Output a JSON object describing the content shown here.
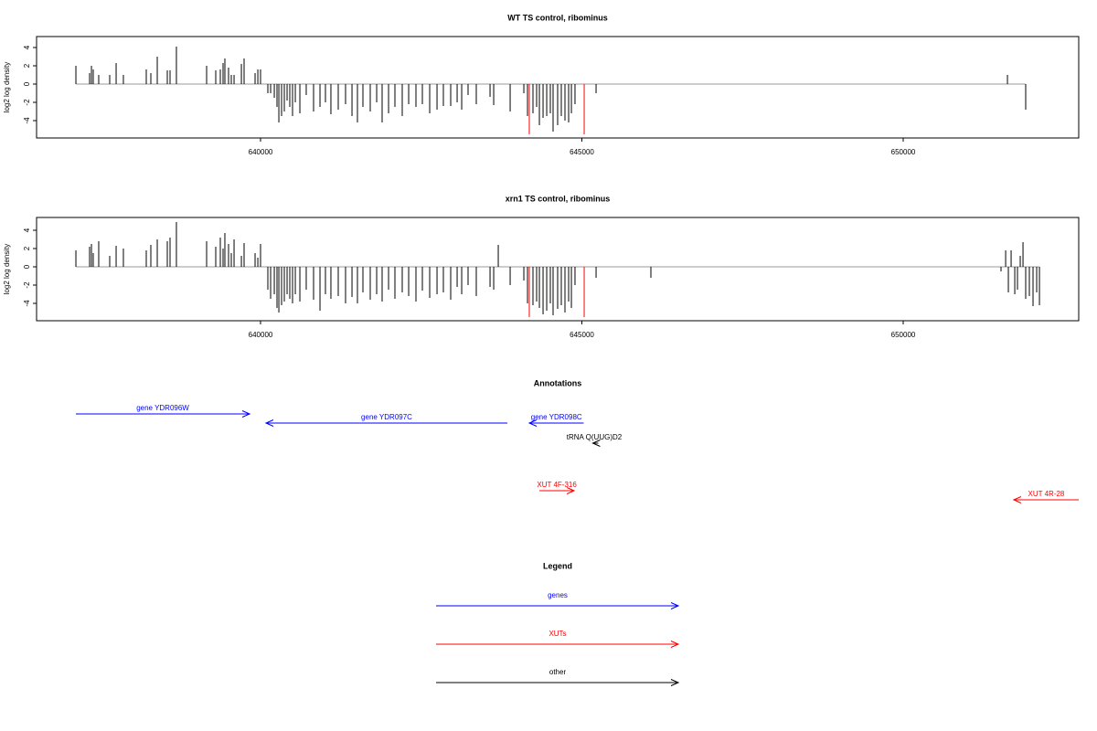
{
  "chart_data": [
    {
      "type": "spikes",
      "title": "WT TS control, ribominus",
      "y_label": "log2 log density",
      "xlim": [
        636515,
        652731
      ],
      "xticks": [
        640000,
        645000,
        650000
      ],
      "ylim": [
        -5.9,
        5.2
      ],
      "yticks": [
        4,
        2,
        0,
        -2,
        -4
      ],
      "series": [
        {
          "color": "#000000",
          "x": [
            637127,
            637340,
            637369,
            637397,
            637482,
            637653,
            637753,
            637866,
            638222,
            638293,
            638393,
            638549,
            638592,
            638691,
            639161,
            639303,
            639374,
            639417,
            639445,
            639502,
            639545,
            639588,
            639702,
            639744,
            639915,
            639958,
            640000,
            640114,
            640157,
            640214,
            640256,
            640285,
            640327,
            640370,
            640413,
            640455,
            640498,
            640541,
            640612,
            640711,
            640825,
            640925,
            641010,
            641095,
            641209,
            641323,
            641423,
            641508,
            641593,
            641707,
            641807,
            641892,
            641992,
            642091,
            642205,
            642305,
            642418,
            642518,
            642632,
            642746,
            642845,
            642959,
            643059,
            643130,
            643229,
            643357,
            643571,
            643628,
            643884,
            644097,
            644154,
            644239,
            644296,
            644339,
            644396,
            644453,
            644509,
            644552,
            644623,
            644680,
            644737,
            644794,
            644837,
            644893,
            645221,
            651622,
            651906
          ],
          "values": [
            2,
            1.2,
            2,
            1.6,
            1,
            1,
            2.3,
            1,
            1.6,
            1.2,
            3,
            1.5,
            1.5,
            4.1,
            2,
            1.5,
            1.6,
            2.3,
            2.8,
            1.8,
            1,
            1,
            2.2,
            2.8,
            1.2,
            1.6,
            1.6,
            -1,
            -1,
            -1.5,
            -2.5,
            -4.2,
            -3.5,
            -3,
            -1.8,
            -2.5,
            -3.5,
            -2,
            -3.2,
            -1.2,
            -3,
            -2.5,
            -2,
            -3.3,
            -2.8,
            -2.2,
            -3.5,
            -4.2,
            -2.5,
            -3,
            -2,
            -4.2,
            -3.2,
            -2.5,
            -3.5,
            -2.2,
            -2.5,
            -2.2,
            -3.2,
            -2.8,
            -2.4,
            -2.4,
            -2,
            -2.8,
            -1.2,
            -2.2,
            -1.4,
            -2.3,
            -3,
            -1,
            -3.5,
            -3.2,
            -2.5,
            -4.5,
            -3.7,
            -3.5,
            -3.2,
            -5.2,
            -4.5,
            -3.5,
            -4,
            -4.2,
            -3.2,
            -2.2,
            -1,
            1,
            -2.8
          ]
        },
        {
          "color": "#ff0000",
          "x": [
            644182,
            645036
          ],
          "values": [
            -5.5,
            -5.5
          ]
        }
      ]
    },
    {
      "type": "spikes",
      "title": "xrn1 TS control, ribominus",
      "y_label": "log2 log density",
      "xlim": [
        636515,
        652731
      ],
      "xticks": [
        640000,
        645000,
        650000
      ],
      "ylim": [
        -5.9,
        5.4
      ],
      "yticks": [
        4,
        2,
        0,
        -2,
        -4
      ],
      "series": [
        {
          "color": "#000000",
          "x": [
            637127,
            637340,
            637369,
            637397,
            637482,
            637653,
            637753,
            637866,
            638222,
            638293,
            638393,
            638549,
            638592,
            638691,
            639161,
            639303,
            639374,
            639417,
            639445,
            639502,
            639545,
            639588,
            639702,
            639744,
            639915,
            639958,
            640000,
            640114,
            640157,
            640214,
            640256,
            640285,
            640327,
            640370,
            640413,
            640455,
            640498,
            640541,
            640612,
            640711,
            640825,
            640925,
            641010,
            641095,
            641209,
            641323,
            641423,
            641508,
            641593,
            641707,
            641807,
            641892,
            641992,
            642091,
            642205,
            642305,
            642418,
            642518,
            642632,
            642746,
            642845,
            642959,
            643059,
            643130,
            643229,
            643357,
            643571,
            643628,
            643884,
            644097,
            644154,
            644239,
            644296,
            644339,
            644396,
            644453,
            644509,
            644552,
            644623,
            644680,
            644737,
            644794,
            644837,
            644893,
            645221,
            643699,
            646074,
            651522,
            651594,
            651636,
            651679,
            651736,
            651778,
            651821,
            651864,
            651906,
            651963,
            652020,
            652077,
            652120
          ],
          "values": [
            1.8,
            2.2,
            2.5,
            1.5,
            2.8,
            1.2,
            2.3,
            2,
            1.8,
            2.4,
            3,
            2.8,
            3.2,
            4.9,
            2.8,
            2.2,
            3.2,
            2,
            3.7,
            2.5,
            1.5,
            3,
            1.2,
            2.6,
            1.5,
            1,
            2.5,
            -2.5,
            -3.5,
            -3,
            -4.5,
            -5,
            -4.2,
            -3.8,
            -3,
            -3.5,
            -4,
            -3,
            -3.8,
            -2.5,
            -3.6,
            -4.8,
            -3,
            -3.5,
            -3.2,
            -4,
            -3.3,
            -4,
            -2.8,
            -3.6,
            -3,
            -3.8,
            -2.5,
            -3.5,
            -2.8,
            -3.2,
            -3.8,
            -2.6,
            -3.4,
            -3,
            -2.8,
            -3.6,
            -2.2,
            -3,
            -2,
            -3.2,
            -2.2,
            -2.5,
            -2,
            -1.5,
            -4,
            -4.2,
            -3.8,
            -4.5,
            -5.2,
            -4.8,
            -4,
            -5.3,
            -4.6,
            -4.2,
            -5,
            -3.8,
            -4.5,
            -2,
            -1.2,
            2.4,
            -1.2,
            -0.5,
            1.8,
            -2.8,
            1.8,
            -3,
            -2.5,
            1.2,
            2.7,
            -3.5,
            -3.2,
            -4.3,
            -2.8,
            -4.2
          ]
        },
        {
          "color": "#ff0000",
          "x": [
            644182,
            645036
          ],
          "values": [
            -5.5,
            -5.5
          ]
        }
      ]
    },
    {
      "type": "annotations",
      "title": "Annotations",
      "xlim": [
        636515,
        652731
      ],
      "features": [
        {
          "label": "gene YDR096W",
          "start": 637127,
          "end": 639830,
          "color": "#0000ff"
        },
        {
          "label": "gene YDR097C",
          "start": 643841,
          "end": 640085,
          "color": "#0000ff"
        },
        {
          "label": "gene YDR098C",
          "start": 645028,
          "end": 644182,
          "color": "#0000ff"
        },
        {
          "label": "tRNA Q(UUG)D2",
          "start": 645256,
          "end": 645170,
          "color": "#000000"
        },
        {
          "label": "XUT 4F-316",
          "start": 644340,
          "end": 644880,
          "color": "#ff0000"
        },
        {
          "label": "XUT 4R-28",
          "start": 652731,
          "end": 651720,
          "color": "#ff0000"
        }
      ]
    },
    {
      "type": "legend",
      "title": "Legend",
      "entries": [
        {
          "name": "genes",
          "color": "#0000ff"
        },
        {
          "name": "XUTs",
          "color": "#ff0000"
        },
        {
          "name": "other",
          "color": "#000000"
        }
      ]
    }
  ]
}
